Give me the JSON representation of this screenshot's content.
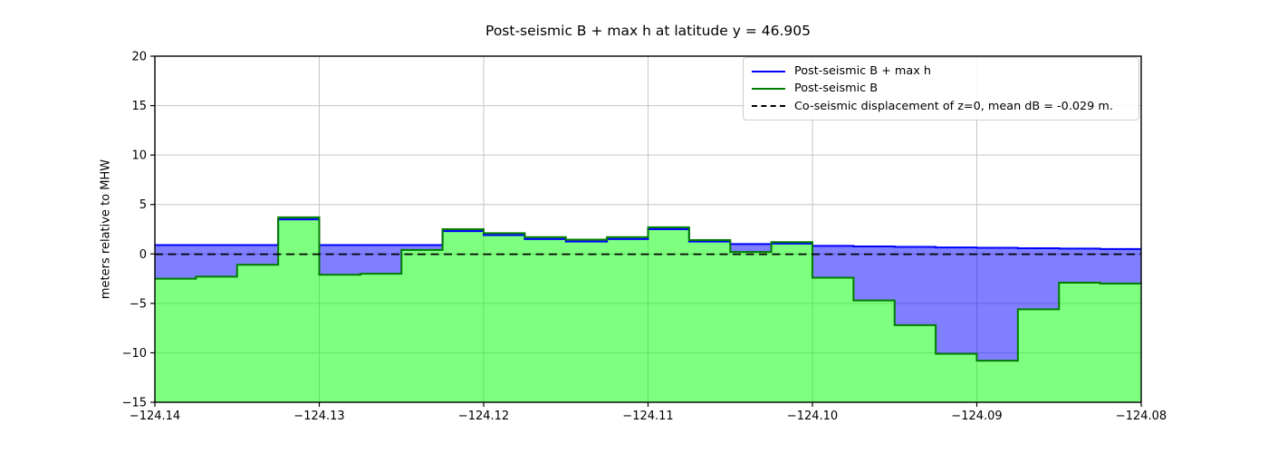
{
  "title": "Post-seismic B + max h at latitude y = 46.905",
  "ylabel": "meters relative to MHW",
  "legend": {
    "items": [
      {
        "label": "Post-seismic B + max h",
        "color": "#0000ff",
        "style": "solid"
      },
      {
        "label": "Post-seismic B",
        "color": "#007d00",
        "style": "solid"
      },
      {
        "label": "Co-seismic displacement of z=0, mean dB = -0.029 m.",
        "color": "#000000",
        "style": "dashed"
      }
    ]
  },
  "colors": {
    "blue_line": "#0000ff",
    "blue_fill": "rgba(0,0,255,0.5)",
    "green_line": "#007d00",
    "green_fill": "rgba(0,255,0,0.5)",
    "dashed_line": "#000000",
    "grid": "#c6c6c6",
    "spine": "#000000"
  },
  "chart_data": {
    "type": "area",
    "note": "step plot; x_edges are cell boundaries in longitude, each series has one value per cell",
    "xlim": [
      -124.14,
      -124.08
    ],
    "ylim": [
      -15,
      20
    ],
    "grid": true,
    "legend_position": "upper right",
    "x_edges": [
      -124.14,
      -124.1375,
      -124.135,
      -124.1325,
      -124.13,
      -124.1275,
      -124.125,
      -124.1225,
      -124.12,
      -124.1175,
      -124.115,
      -124.1125,
      -124.11,
      -124.1075,
      -124.105,
      -124.1025,
      -124.1,
      -124.0975,
      -124.095,
      -124.0925,
      -124.09,
      -124.0875,
      -124.085,
      -124.0825,
      -124.08
    ],
    "series": [
      {
        "name": "Post-seismic B + max h",
        "values": [
          0.9,
          0.9,
          0.9,
          3.5,
          0.9,
          0.9,
          0.9,
          2.3,
          1.9,
          1.5,
          1.25,
          1.5,
          2.5,
          1.25,
          1.0,
          1.05,
          0.82,
          0.76,
          0.71,
          0.66,
          0.62,
          0.58,
          0.54,
          0.5
        ]
      },
      {
        "name": "Post-seismic B",
        "values": [
          -2.5,
          -2.3,
          -1.1,
          3.7,
          -2.1,
          -2.0,
          0.4,
          2.5,
          2.1,
          1.7,
          1.45,
          1.7,
          2.7,
          1.4,
          0.2,
          1.2,
          -2.4,
          -4.7,
          -7.2,
          -10.1,
          -10.8,
          -5.6,
          -2.9,
          -3.0
        ]
      }
    ],
    "dashed_line_y": -0.029,
    "xticks": [
      {
        "v": -124.14,
        "label": "−124.14"
      },
      {
        "v": -124.13,
        "label": "−124.13"
      },
      {
        "v": -124.12,
        "label": "−124.12"
      },
      {
        "v": -124.11,
        "label": "−124.11"
      },
      {
        "v": -124.1,
        "label": "−124.10"
      },
      {
        "v": -124.09,
        "label": "−124.09"
      },
      {
        "v": -124.08,
        "label": "−124.08"
      }
    ],
    "yticks": [
      {
        "v": -15,
        "label": "−15"
      },
      {
        "v": -10,
        "label": "−10"
      },
      {
        "v": -5,
        "label": "−5"
      },
      {
        "v": 0,
        "label": "0"
      },
      {
        "v": 5,
        "label": "5"
      },
      {
        "v": 10,
        "label": "10"
      },
      {
        "v": 15,
        "label": "15"
      },
      {
        "v": 20,
        "label": "20"
      }
    ]
  }
}
